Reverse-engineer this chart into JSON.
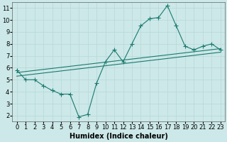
{
  "title": "",
  "xlabel": "Humidex (Indice chaleur)",
  "ylabel": "",
  "bg_color": "#cce8e8",
  "line_color": "#1a7a6e",
  "xlim": [
    -0.5,
    23.5
  ],
  "ylim": [
    1.5,
    11.5
  ],
  "xticks": [
    0,
    1,
    2,
    3,
    4,
    5,
    6,
    7,
    8,
    9,
    10,
    11,
    12,
    13,
    14,
    15,
    16,
    17,
    18,
    19,
    20,
    21,
    22,
    23
  ],
  "yticks": [
    2,
    3,
    4,
    5,
    6,
    7,
    8,
    9,
    10,
    11
  ],
  "main_x": [
    0,
    1,
    2,
    3,
    4,
    5,
    6,
    7,
    8,
    9,
    10,
    11,
    12,
    13,
    14,
    15,
    16,
    17,
    18,
    19,
    20,
    21,
    22,
    23
  ],
  "main_y": [
    5.8,
    5.0,
    5.0,
    4.5,
    4.1,
    3.8,
    3.8,
    1.9,
    2.1,
    4.7,
    6.5,
    7.5,
    6.5,
    8.0,
    9.5,
    10.1,
    10.2,
    11.2,
    9.5,
    7.8,
    7.5,
    7.8,
    8.0,
    7.5
  ],
  "line2_x": [
    0,
    23
  ],
  "line2_y": [
    5.6,
    7.6
  ],
  "line3_x": [
    0,
    23
  ],
  "line3_y": [
    5.3,
    7.3
  ],
  "marker": "+",
  "markersize": 4,
  "linewidth": 0.8,
  "grid_color": "#b8d8d8",
  "tick_fontsize": 6,
  "xlabel_fontsize": 7
}
